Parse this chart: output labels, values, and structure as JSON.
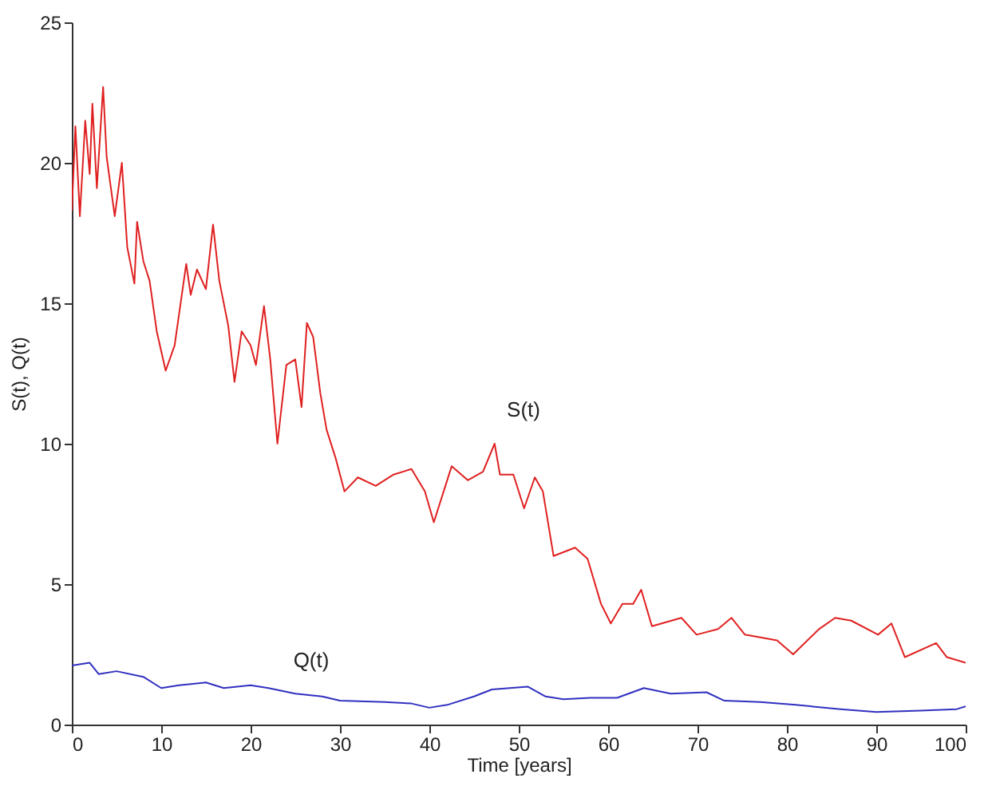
{
  "chart_data": {
    "type": "line",
    "xlabel": "Time [years]",
    "ylabel": "S(t), Q(t)",
    "xlim": [
      0,
      100
    ],
    "ylim": [
      0,
      25
    ],
    "xticks": [
      0,
      10,
      20,
      30,
      40,
      50,
      60,
      70,
      80,
      90,
      100
    ],
    "yticks": [
      0,
      5,
      10,
      15,
      20,
      25
    ],
    "grid": false,
    "marker": "none",
    "line_style": "solid",
    "series": [
      {
        "name": "S(t)",
        "color": "#e02020",
        "x": [
          0,
          0.4,
          0.9,
          1.5,
          2.0,
          2.3,
          2.8,
          3.5,
          3.9,
          4.8,
          5.6,
          6.2,
          7.0,
          7.3,
          8.0,
          8.7,
          9.5,
          10.5,
          11.5,
          12.8,
          13.3,
          14.0,
          15.0,
          15.8,
          16.5,
          17.5,
          18.2,
          19.0,
          20.0,
          20.6,
          21.5,
          22.2,
          23.0,
          24.0,
          25.0,
          25.7,
          26.3,
          27.0,
          27.8,
          28.5,
          29.5,
          30.5,
          32.0,
          34.0,
          36.0,
          38.0,
          39.5,
          40.5,
          42.5,
          44.3,
          46.0,
          47.3,
          47.9,
          49.4,
          50.6,
          51.8,
          52.7,
          53.9,
          56.3,
          57.7,
          59.2,
          60.3,
          61.6,
          62.8,
          63.7,
          64.9,
          68.2,
          69.9,
          72.3,
          73.8,
          75.3,
          78.9,
          80.7,
          83.6,
          85.4,
          87.2,
          90.2,
          91.7,
          93.2,
          96.7,
          97.9,
          100
        ],
        "values": [
          18.3,
          21.3,
          18.1,
          21.5,
          19.6,
          22.1,
          19.1,
          22.7,
          20.2,
          18.1,
          20.0,
          17.0,
          15.7,
          17.9,
          16.5,
          15.8,
          14.0,
          12.6,
          13.5,
          16.4,
          15.3,
          16.2,
          15.5,
          17.8,
          15.8,
          14.2,
          12.2,
          14.0,
          13.5,
          12.8,
          14.9,
          13.0,
          10.0,
          12.8,
          13.0,
          11.3,
          14.3,
          13.8,
          11.8,
          10.5,
          9.5,
          8.3,
          8.8,
          8.5,
          8.9,
          9.1,
          8.3,
          7.2,
          9.2,
          8.7,
          9.0,
          10.0,
          8.9,
          8.9,
          7.7,
          8.8,
          8.3,
          6.0,
          6.3,
          5.9,
          4.3,
          3.6,
          4.3,
          4.3,
          4.8,
          3.5,
          3.8,
          3.2,
          3.4,
          3.8,
          3.2,
          3.0,
          2.5,
          3.4,
          3.8,
          3.7,
          3.2,
          3.6,
          2.4,
          2.9,
          2.4,
          2.2
        ]
      },
      {
        "name": "Q(t)",
        "color": "#3030c0",
        "x": [
          0,
          2,
          3,
          5,
          8,
          10,
          12,
          15,
          17,
          20,
          22,
          25,
          28,
          30,
          35,
          38,
          40,
          42,
          45,
          47,
          49,
          51,
          53,
          55,
          58,
          61,
          64,
          67,
          71,
          73,
          77,
          81,
          86,
          90,
          95,
          99,
          100
        ],
        "values": [
          2.1,
          2.2,
          1.8,
          1.9,
          1.7,
          1.3,
          1.4,
          1.5,
          1.3,
          1.4,
          1.3,
          1.1,
          1.0,
          0.85,
          0.8,
          0.75,
          0.6,
          0.7,
          1.0,
          1.25,
          1.3,
          1.35,
          1.0,
          0.9,
          0.95,
          0.95,
          1.3,
          1.1,
          1.15,
          0.85,
          0.8,
          0.7,
          0.55,
          0.45,
          0.5,
          0.55,
          0.65
        ]
      }
    ]
  }
}
